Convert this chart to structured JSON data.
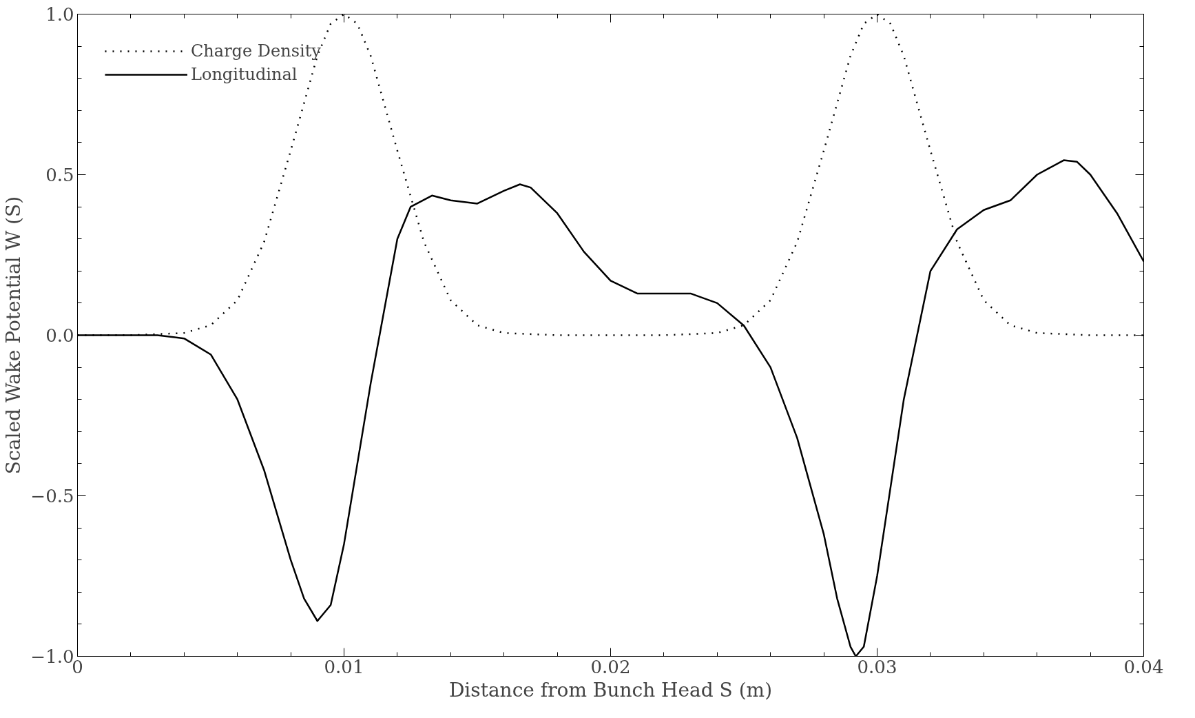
{
  "chart_data": {
    "type": "line",
    "xlabel": "Distance from Bunch Head S (m)",
    "ylabel": "Scaled Wake Potential W (S)",
    "xlim": [
      0,
      0.04
    ],
    "ylim": [
      -1.0,
      1.0
    ],
    "xticks": [
      0,
      0.01,
      0.02,
      0.03,
      0.04
    ],
    "yticks": [
      {
        "value": -1.0,
        "label": "−1.0"
      },
      {
        "value": -0.5,
        "label": "−0.5"
      },
      {
        "value": 0,
        "label": "0.0"
      },
      {
        "value": 0.5,
        "label": "0.5"
      },
      {
        "value": 1.0,
        "label": "1.0"
      }
    ],
    "legend": "top left",
    "grid": false,
    "marker": "none",
    "series": [
      {
        "name": "Charge Density",
        "color": "#000000",
        "line_style": "dotted",
        "x": [
          0,
          0.002,
          0.004,
          0.005,
          0.006,
          0.007,
          0.008,
          0.009,
          0.0095,
          0.01,
          0.0105,
          0.011,
          0.012,
          0.013,
          0.014,
          0.015,
          0.016,
          0.018,
          0.022,
          0.024,
          0.025,
          0.026,
          0.027,
          0.028,
          0.029,
          0.0295,
          0.03,
          0.0305,
          0.031,
          0.032,
          0.033,
          0.034,
          0.035,
          0.036,
          0.038,
          0.04
        ],
        "values": [
          0,
          0,
          0.007,
          0.031,
          0.109,
          0.29,
          0.575,
          0.87,
          0.97,
          1.0,
          0.97,
          0.87,
          0.575,
          0.29,
          0.109,
          0.031,
          0.007,
          0,
          0,
          0.007,
          0.031,
          0.109,
          0.29,
          0.575,
          0.87,
          0.97,
          1.0,
          0.97,
          0.87,
          0.575,
          0.29,
          0.109,
          0.031,
          0.007,
          0,
          0
        ]
      },
      {
        "name": "Longitudinal",
        "color": "#000000",
        "line_style": "solid",
        "x": [
          0,
          0.003,
          0.004,
          0.005,
          0.006,
          0.007,
          0.008,
          0.0085,
          0.009,
          0.0095,
          0.01,
          0.011,
          0.012,
          0.0125,
          0.0133,
          0.014,
          0.015,
          0.016,
          0.0166,
          0.017,
          0.018,
          0.019,
          0.02,
          0.021,
          0.022,
          0.023,
          0.024,
          0.025,
          0.026,
          0.027,
          0.028,
          0.0285,
          0.029,
          0.0292,
          0.0295,
          0.03,
          0.031,
          0.032,
          0.033,
          0.034,
          0.035,
          0.036,
          0.037,
          0.0375,
          0.038,
          0.039,
          0.04
        ],
        "values": [
          0,
          0,
          -0.01,
          -0.06,
          -0.2,
          -0.42,
          -0.7,
          -0.82,
          -0.89,
          -0.84,
          -0.65,
          -0.15,
          0.3,
          0.4,
          0.435,
          0.42,
          0.41,
          0.45,
          0.47,
          0.46,
          0.38,
          0.26,
          0.17,
          0.13,
          0.13,
          0.13,
          0.1,
          0.03,
          -0.1,
          -0.32,
          -0.62,
          -0.82,
          -0.97,
          -1.0,
          -0.97,
          -0.75,
          -0.2,
          0.2,
          0.33,
          0.39,
          0.42,
          0.5,
          0.545,
          0.54,
          0.5,
          0.38,
          0.23
        ]
      }
    ]
  }
}
